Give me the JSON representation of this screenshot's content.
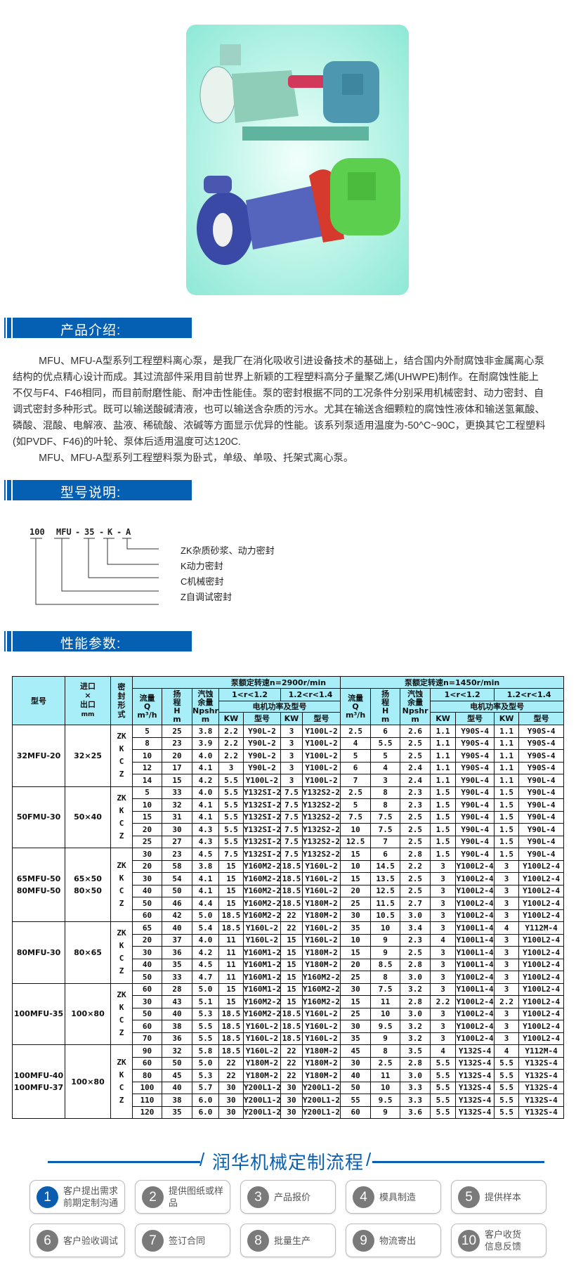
{
  "colors": {
    "accent": "#0560b3",
    "table_header": "#a8eef8",
    "step_active": "#0b5db0",
    "step_inactive": "#7a7a7a"
  },
  "sections": {
    "intro_title": "产品介绍:",
    "model_title": "型号说明:",
    "perf_title": "性能参数:"
  },
  "intro": {
    "paragraphs": [
      "MFU、MFU-A型系列工程塑料离心泵，是我厂在消化吸收引进设备技术的基础上，结合国内外耐腐蚀非金属离心泵结构的优点精心设计而成。其过流部件采用目前世界上新颖的工程塑料高分子量聚乙烯(UHWPE)制作。在耐腐蚀性能上不仅与F4、F46相同，而目前耐磨性能、耐冲击性能佳。泵的密封根据不同的工况条件分别采用机械密封、动力密封、自调式密封多种形式。既可以输送酸碱清液，也可以输送含杂质的污水。尤其在输送含细颗粒的腐蚀性液体和输送氢氟酸、磷酸、混酸、电解液、盐液、稀硫酸、浓碱等方面显示优异的性能。该系列泵适用温度为-50^C~90C，更换其它工程塑料(如PVDF、F46)的叶轮、泵体后适用温度可达120C.",
      "MFU、MFU-A型系列工程塑料泵为卧式，单级、单吸、托架式离心泵。"
    ]
  },
  "model_code": {
    "parts": [
      "100",
      "MFU",
      "-",
      "35",
      "-",
      "K",
      "-",
      "A"
    ],
    "legend": [
      "ZK杂质砂浆、动力密封",
      "K动力密封",
      "C机械密封",
      "Z自调试密封"
    ]
  },
  "table": {
    "header": {
      "model": "型号",
      "size": "进口\n×\n出口",
      "size_unit": "mm",
      "seal": "密\n封\n形\n式",
      "speed_2900": "泵额定转速n=2900r/min",
      "speed_1450": "泵额定转速n=1450r/min",
      "flow": "流量\nQ",
      "flow_unit": "m³/h",
      "head": "扬\n程\nH",
      "head_unit": "m",
      "npsh": "汽蚀\n余量\nNpshr",
      "npsh_unit": "m",
      "range1": "1<r<1.2",
      "range2": "1.2<r<1.4",
      "motor": "电机功率及型号",
      "kw": "KW",
      "type": "型号"
    },
    "groups": [
      {
        "model": "32MFU-20",
        "size": "32×25",
        "seal": "ZK\nK\nC\nZ",
        "rows": [
          [
            "5",
            "25",
            "3.8",
            "2.2",
            "Y90L-2",
            "3",
            "Y100L-2",
            "2.5",
            "6",
            "2.6",
            "1.1",
            "Y90S-4",
            "1.1",
            "Y90S-4"
          ],
          [
            "8",
            "23",
            "3.9",
            "2.2",
            "Y90L-2",
            "3",
            "Y100L-2",
            "4",
            "5.5",
            "2.5",
            "1.1",
            "Y90S-4",
            "1.1",
            "Y90S-4"
          ],
          [
            "10",
            "20",
            "4.0",
            "2.2",
            "Y90L-2",
            "3",
            "Y100L-2",
            "5",
            "5",
            "2.5",
            "1.1",
            "Y90S-4",
            "1.1",
            "Y90S-4"
          ],
          [
            "12",
            "17",
            "4.1",
            "3",
            "Y90L-2",
            "3",
            "Y100L-2",
            "6",
            "4",
            "2.4",
            "1.1",
            "Y90S-4",
            "1.1",
            "Y90S-4"
          ],
          [
            "14",
            "15",
            "4.2",
            "5.5",
            "Y100L-2",
            "3",
            "Y100L-2",
            "7",
            "3",
            "2.4",
            "1.1",
            "Y90L-4",
            "1.1",
            "Y90L-4"
          ]
        ]
      },
      {
        "model": "50FMU-30",
        "size": "50×40",
        "seal": "ZK\nK\nC\nZ",
        "rows": [
          [
            "5",
            "33",
            "4.0",
            "5.5",
            "Y132SI-2",
            "7.5",
            "Y132S2-2",
            "2.5",
            "8",
            "2.3",
            "1.5",
            "Y90L-4",
            "1.5",
            "Y90L-4"
          ],
          [
            "10",
            "32",
            "4.1",
            "5.5",
            "Y132SI-2",
            "7.5",
            "Y132S2-2",
            "5",
            "8",
            "2.3",
            "1.5",
            "Y90L-4",
            "1.5",
            "Y90L-4"
          ],
          [
            "15",
            "31",
            "4.1",
            "5.5",
            "Y132SI-2",
            "7.5",
            "Y132S2-2",
            "7.5",
            "7.5",
            "2.5",
            "1.5",
            "Y90L-4",
            "1.5",
            "Y90L-4"
          ],
          [
            "20",
            "30",
            "4.3",
            "5.5",
            "Y132SI-2",
            "7.5",
            "Y132S2-2",
            "10",
            "7.5",
            "2.5",
            "1.5",
            "Y90L-4",
            "1.5",
            "Y90L-4"
          ],
          [
            "25",
            "27",
            "4.3",
            "5.5",
            "Y132SI-2",
            "7.5",
            "Y132S2-2",
            "12.5",
            "7",
            "2.5",
            "1.5",
            "Y90L-4",
            "1.5",
            "Y90L-4"
          ]
        ]
      },
      {
        "model": "65MFU-50\n80MFU-50",
        "size": "65×50\n80×50",
        "seal": "ZK\nK\nC\nZ",
        "rows": [
          [
            "30",
            "23",
            "4.5",
            "7.5",
            "Y132SI-2",
            "7.5",
            "Y132S2-2",
            "15",
            "6",
            "2.8",
            "1.5",
            "Y90L-4",
            "1.5",
            "Y90L-4"
          ],
          [
            "20",
            "58",
            "3.8",
            "15",
            "Y160M2-2",
            "18.5",
            "Y160L-2",
            "10",
            "14.5",
            "2.2",
            "3",
            "Y100L2-4",
            "3",
            "Y100L2-4"
          ],
          [
            "30",
            "54",
            "4.1",
            "15",
            "Y160M2-2",
            "18.5",
            "Y160L-2",
            "15",
            "13.5",
            "2.5",
            "3",
            "Y100L2-4",
            "3",
            "Y100L2-4"
          ],
          [
            "40",
            "50",
            "4.1",
            "15",
            "Y160M2-2",
            "18.5",
            "Y160L-2",
            "20",
            "12.5",
            "2.5",
            "3",
            "Y100L2-4",
            "3",
            "Y100L2-4"
          ],
          [
            "50",
            "46",
            "4.4",
            "15",
            "Y160M2-2",
            "18.5",
            "Y180M-2",
            "25",
            "11.5",
            "2.7",
            "3",
            "Y100L2-4",
            "3",
            "Y100L2-4"
          ],
          [
            "60",
            "42",
            "5.0",
            "18.5",
            "Y160M2-2",
            "22",
            "Y180M-2",
            "30",
            "10.5",
            "3.0",
            "3",
            "Y100L2-4",
            "3",
            "Y100L2-4"
          ]
        ]
      },
      {
        "model": "80MFU-30",
        "size": "80×65",
        "seal": "ZK\nK\nC\nZ",
        "rows": [
          [
            "65",
            "40",
            "5.4",
            "18.5",
            "Y160L-2",
            "22",
            "Y160L-2",
            "35",
            "10",
            "3.4",
            "3",
            "Y100L1-4",
            "4",
            "Y112M-4"
          ],
          [
            "20",
            "37",
            "4.0",
            "11",
            "Y160L-2",
            "15",
            "Y160L-2",
            "10",
            "9",
            "2.3",
            "4",
            "Y100L1-4",
            "3",
            "Y100L2-4"
          ],
          [
            "30",
            "36",
            "4.2",
            "11",
            "Y160M1-2",
            "15",
            "Y180M-2",
            "15",
            "9",
            "2.5",
            "3",
            "Y100L1-4",
            "3",
            "Y100L2-4"
          ],
          [
            "40",
            "35",
            "4.5",
            "11",
            "Y160M1-2",
            "15",
            "Y180M-2",
            "20",
            "8.5",
            "2.8",
            "3",
            "Y100L1-4",
            "3",
            "Y100L2-4"
          ],
          [
            "50",
            "33",
            "4.7",
            "11",
            "Y160M1-2",
            "15",
            "Y160M2-2",
            "25",
            "8",
            "3.0",
            "3",
            "Y100L2-4",
            "3",
            "Y100L2-4"
          ]
        ]
      },
      {
        "model": "100MFU-35",
        "size": "100×80",
        "seal": "ZK\nK\nC\nZ",
        "rows": [
          [
            "60",
            "28",
            "5.0",
            "15",
            "Y160M1-2",
            "15",
            "Y160M2-2",
            "30",
            "7.5",
            "3.2",
            "3",
            "Y100L1-4",
            "3",
            "Y100L2-4"
          ],
          [
            "30",
            "43",
            "5.1",
            "15",
            "Y160M2-2",
            "15",
            "Y160M2-2",
            "15",
            "11",
            "2.8",
            "2.2",
            "Y100L2-4",
            "2.2",
            "Y100L2-4"
          ],
          [
            "50",
            "40",
            "5.3",
            "18.5",
            "Y160M2-2",
            "18.5",
            "Y160L-2",
            "25",
            "10",
            "3.0",
            "3",
            "Y100L2-4",
            "3",
            "Y100L2-4"
          ],
          [
            "60",
            "38",
            "5.5",
            "18.5",
            "Y160L-2",
            "18.5",
            "Y160L-2",
            "30",
            "9.5",
            "3.2",
            "3",
            "Y100L2-4",
            "3",
            "Y100L2-4"
          ],
          [
            "70",
            "36",
            "5.5",
            "18.5",
            "Y160L-2",
            "18.5",
            "Y160L-2",
            "35",
            "9",
            "3.2",
            "3",
            "Y100L2-4",
            "3",
            "Y100L2-4"
          ]
        ]
      },
      {
        "model": "100MFU-40\n100MFU-37",
        "size": "100×80",
        "seal": "ZK\nK\nC\nZ",
        "rows": [
          [
            "90",
            "32",
            "5.8",
            "18.5",
            "Y160L-2",
            "22",
            "Y180M-2",
            "45",
            "8",
            "3.5",
            "4",
            "Y132S-4",
            "4",
            "Y112M-4"
          ],
          [
            "60",
            "50",
            "5.0",
            "22",
            "Y180M-2",
            "22",
            "Y180M-2",
            "30",
            "2.5",
            "2.8",
            "5.5",
            "Y132S-4",
            "5.5",
            "Y132S-4"
          ],
          [
            "80",
            "45",
            "5.3",
            "22",
            "Y180M-2",
            "22",
            "Y180M-2",
            "40",
            "11",
            "3.0",
            "5.5",
            "Y132S-4",
            "5.5",
            "Y132S-4"
          ],
          [
            "100",
            "40",
            "5.7",
            "30",
            "Y200L1-2",
            "30",
            "Y200L1-2",
            "50",
            "10",
            "3.3",
            "5.5",
            "Y132S-4",
            "5.5",
            "Y132S-4"
          ],
          [
            "110",
            "38",
            "6.0",
            "30",
            "Y200L1-2",
            "30",
            "Y200L1-2",
            "55",
            "9.5",
            "3.3",
            "5.5",
            "Y132S-4",
            "5.5",
            "Y132S-4"
          ],
          [
            "120",
            "35",
            "6.0",
            "30",
            "Y200L1-2",
            "30",
            "Y200L1-2",
            "60",
            "9",
            "3.6",
            "5.5",
            "Y132S-4",
            "5.5",
            "Y132S-4"
          ]
        ]
      }
    ]
  },
  "flow": {
    "title": "润华机械定制流程",
    "steps": [
      {
        "num": "1",
        "label": "客户提出需求\n前期定制沟通",
        "active": true
      },
      {
        "num": "2",
        "label": "提供图纸或样品"
      },
      {
        "num": "3",
        "label": "产品报价"
      },
      {
        "num": "4",
        "label": "模具制造"
      },
      {
        "num": "5",
        "label": "提供样本"
      },
      {
        "num": "6",
        "label": "客户验收调试"
      },
      {
        "num": "7",
        "label": "签订合同"
      },
      {
        "num": "8",
        "label": "批量生产"
      },
      {
        "num": "9",
        "label": "物流寄出"
      },
      {
        "num": "10",
        "label": "客户收货\n信息反馈"
      }
    ]
  }
}
